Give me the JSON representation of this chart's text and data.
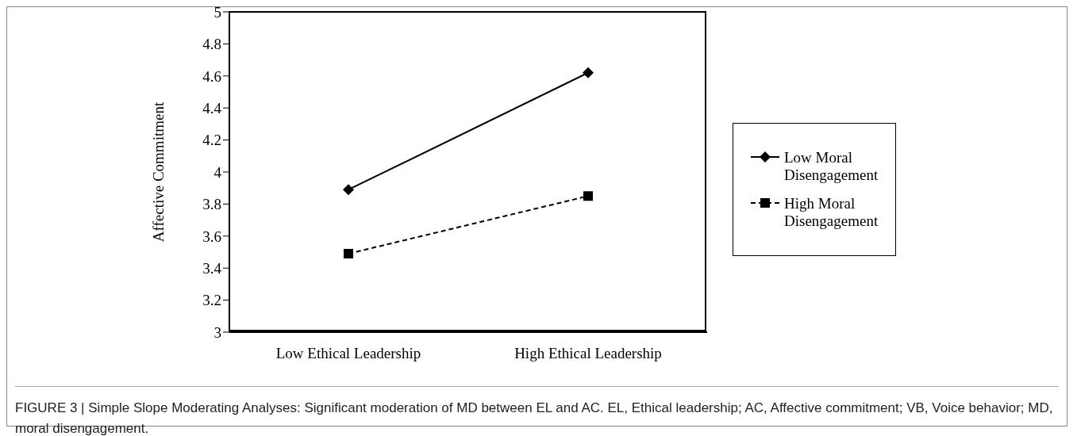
{
  "chart_data": {
    "type": "line",
    "categories": [
      "Low Ethical Leadership",
      "High Ethical Leadership"
    ],
    "ylabel": "Affective Commitment",
    "ylim": [
      3,
      5
    ],
    "yticks": [
      3,
      3.2,
      3.4,
      3.6,
      3.8,
      4,
      4.2,
      4.4,
      4.6,
      4.8,
      5
    ],
    "grid": false,
    "legend": "right",
    "series": [
      {
        "name": "Low Moral Disengagement",
        "color": "#000000",
        "values": [
          3.89,
          4.62
        ],
        "marker": "diamond",
        "line_style": "solid"
      },
      {
        "name": "High Moral Disengagement",
        "color": "#000000",
        "values": [
          3.49,
          3.85
        ],
        "marker": "square",
        "line_style": "dashed"
      }
    ],
    "annotations": [
      "FIGURE 3 | Simple Slope Moderating Analyses: Significant moderation of MD between EL and AC. EL, Ethical leadership; AC, Affective commitment; VB, Voice behavior; MD, moral disengagement."
    ]
  }
}
